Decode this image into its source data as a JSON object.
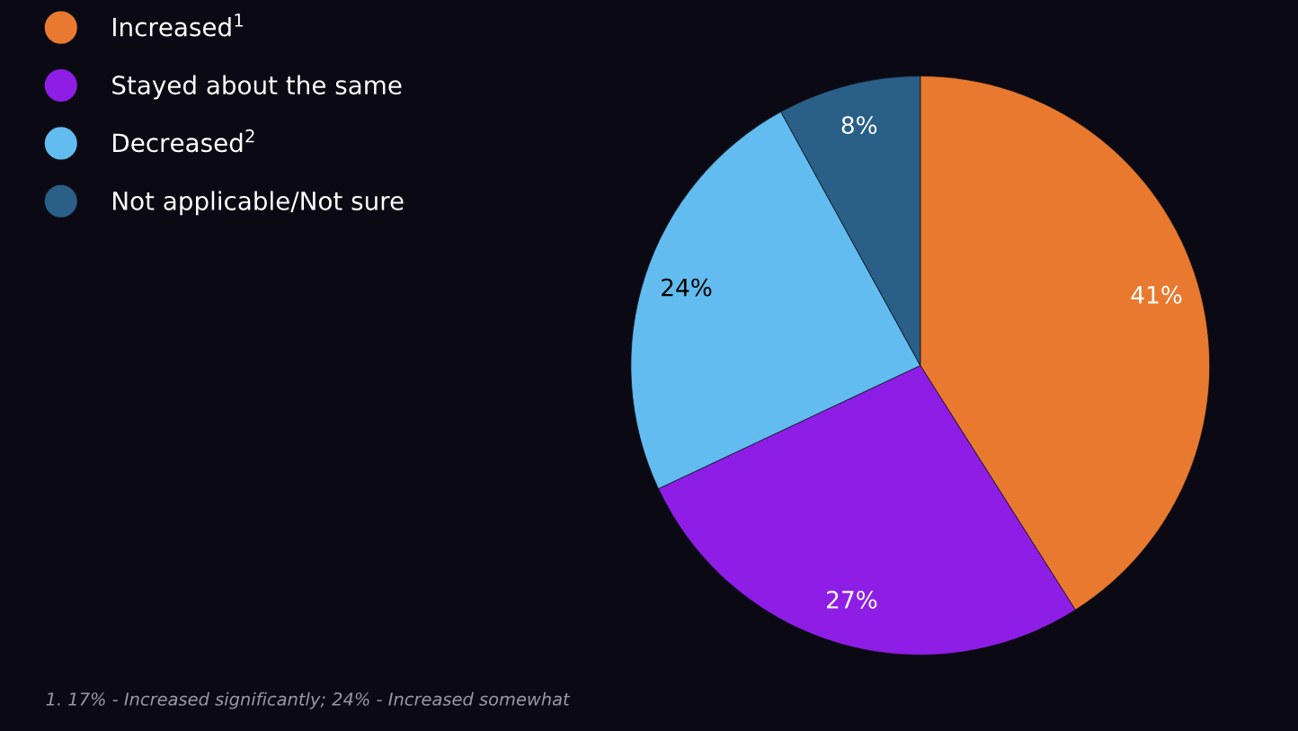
{
  "chart_data": {
    "type": "pie",
    "categories": [
      "Increased$^{1}$",
      "Stayed about the same",
      "Decreased$^{2}$",
      "Not applicable/Not sure"
    ],
    "values": [
      41,
      27,
      24,
      8
    ],
    "colors": [
      "#e8792e",
      "#8e1ee6",
      "#62bcef",
      "#2a5f87"
    ],
    "value_labels": [
      "41%",
      "27%",
      "24%",
      "8%"
    ],
    "legend": "top left",
    "annotations": [
      "1. 17% - Increased significantly; 24% - Increased somewhat"
    ]
  }
}
